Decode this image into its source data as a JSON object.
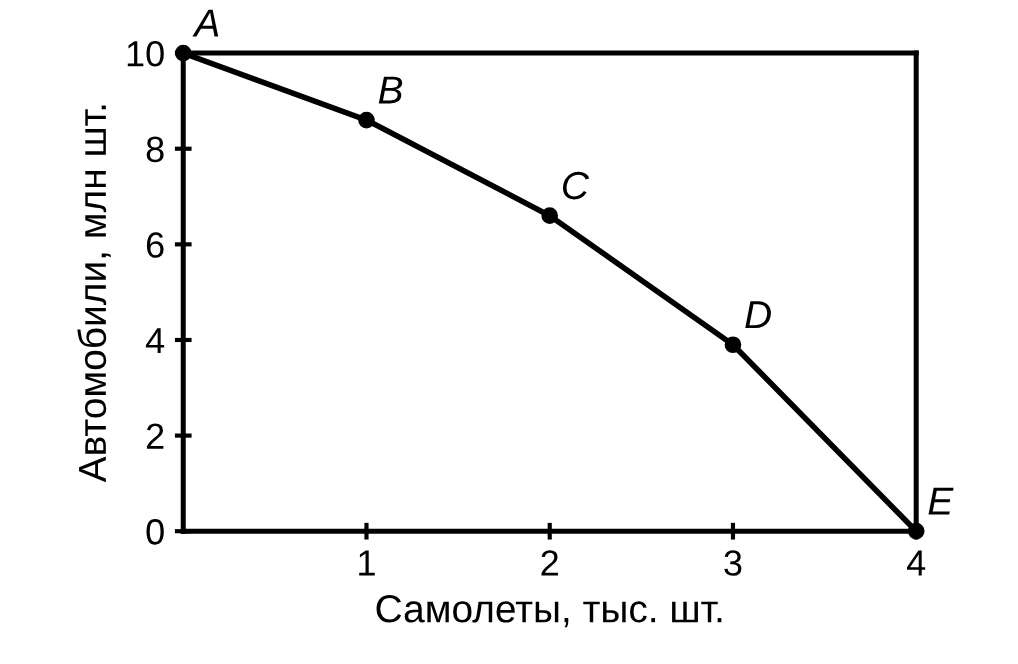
{
  "chart_data": {
    "type": "line",
    "xlabel": "Самолеты, тыс. шт.",
    "ylabel": "Автомобили, млн шт.",
    "x": [
      0,
      1,
      2,
      3,
      4
    ],
    "series": [
      {
        "color": "#000000",
        "values": [
          10,
          8.6,
          6.6,
          3.9,
          0
        ]
      }
    ],
    "xlim": [
      0,
      4
    ],
    "ylim": [
      0,
      10
    ],
    "xticks": [
      1,
      2,
      3,
      4
    ],
    "yticks": [
      0,
      2,
      4,
      6,
      8,
      10
    ],
    "marker": "circle",
    "line_style": "solid",
    "grid": false,
    "legend": false,
    "annotations": [
      {
        "text": "A",
        "x": 0,
        "y": 10
      },
      {
        "text": "B",
        "x": 1,
        "y": 8.6
      },
      {
        "text": "C",
        "x": 2,
        "y": 6.6
      },
      {
        "text": "D",
        "x": 3,
        "y": 3.9
      },
      {
        "text": "E",
        "x": 4,
        "y": 0
      }
    ]
  }
}
